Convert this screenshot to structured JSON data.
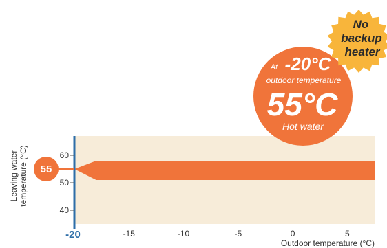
{
  "chart_data": {
    "type": "area",
    "title": "",
    "xlabel": "Outdoor temperature (°C)",
    "ylabel_lines": [
      "Leaving water",
      "temperature (°C)"
    ],
    "xlim": [
      -20,
      7.5
    ],
    "ylim": [
      35,
      67
    ],
    "x_ticks": [
      -20,
      -15,
      -10,
      -5,
      0,
      5
    ],
    "y_ticks": [
      40,
      50,
      60
    ],
    "grid": false,
    "series": [
      {
        "values_lower": [
          {
            "x": -20,
            "y": 55
          },
          {
            "x": -18,
            "y": 51
          },
          {
            "x": 7.5,
            "y": 51
          }
        ],
        "values_upper": [
          {
            "x": -20,
            "y": 55
          },
          {
            "x": -18,
            "y": 58
          },
          {
            "x": 7.5,
            "y": 58
          }
        ]
      }
    ],
    "marker": {
      "label": "55",
      "y": 55
    },
    "emphasized_tick": -20
  },
  "callout": {
    "at_prefix": "At",
    "at_temp": "-20°C",
    "outdoor_label": "outdoor temperature",
    "big_temp": "55°C",
    "sub_label": "Hot water"
  },
  "badge": {
    "line1": "No",
    "line2": "backup",
    "line3": "heater"
  },
  "colors": {
    "orange": "#f0743a",
    "panel": "#f7ecd9",
    "axis_blue": "#2e6ea8",
    "badge_fill": "#f8b53b"
  }
}
